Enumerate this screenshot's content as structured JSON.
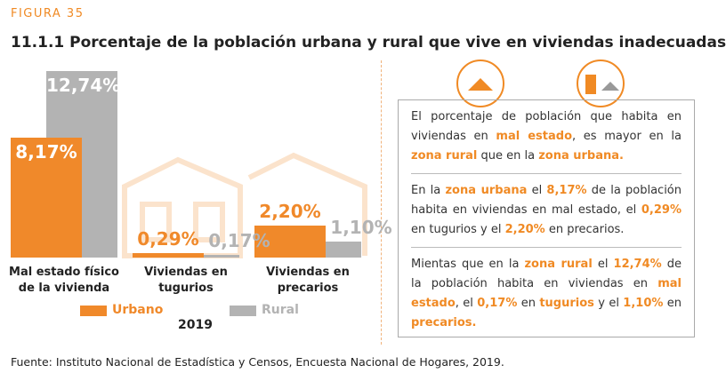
{
  "header": {
    "figure": "FIGURA 35",
    "title": "11.1.1 Porcentaje de la población urbana y rural  que vive en  viviendas inadecuadas"
  },
  "chart_data": {
    "type": "bar",
    "categories": [
      "Mal estado físico\nde la vivienda",
      "Viviendas en\ntugurios",
      "Viviendas en\nprecarios"
    ],
    "x_label": "2019",
    "series": [
      {
        "name": "Urbano",
        "color": "#f0892a",
        "values": [
          8.17,
          0.29,
          2.2
        ],
        "value_labels": [
          "8,17%",
          "0,29%",
          "2,20%"
        ]
      },
      {
        "name": "Rural",
        "color": "#b3b3b3",
        "values": [
          12.74,
          0.17,
          1.1
        ],
        "value_labels": [
          "12,74%",
          "0,17%",
          "1,10%"
        ]
      }
    ]
  },
  "panel": {
    "paragraphs": [
      [
        {
          "text": "El porcentaje de población que habita en viviendas en ",
          "em": false
        },
        {
          "text": "mal estado",
          "em": true
        },
        {
          "text": ", es mayor en la ",
          "em": false
        },
        {
          "text": "zona rural",
          "em": true
        },
        {
          "text": " que en la ",
          "em": false
        },
        {
          "text": "zona urbana.",
          "em": true
        }
      ],
      [
        {
          "text": "En la ",
          "em": false
        },
        {
          "text": "zona urbana",
          "em": true
        },
        {
          "text": " el ",
          "em": false
        },
        {
          "text": "8,17%",
          "em": true
        },
        {
          "text": " de la población habita en viviendas en mal estado, el ",
          "em": false
        },
        {
          "text": "0,29%",
          "em": true
        },
        {
          "text": " en tugurios y el ",
          "em": false
        },
        {
          "text": "2,20%",
          "em": true
        },
        {
          "text": " en precarios.",
          "em": false
        }
      ],
      [
        {
          "text": "Mientas que en la ",
          "em": false
        },
        {
          "text": "zona rural",
          "em": true
        },
        {
          "text": " el ",
          "em": false
        },
        {
          "text": "12,74%",
          "em": true
        },
        {
          "text": " de la población habita en viviendas en ",
          "em": false
        },
        {
          "text": "mal estado",
          "em": true
        },
        {
          "text": ", el ",
          "em": false
        },
        {
          "text": "0,17%",
          "em": true
        },
        {
          "text": " en ",
          "em": false
        },
        {
          "text": "tugurios",
          "em": true
        },
        {
          "text": " y el ",
          "em": false
        },
        {
          "text": "1,10%",
          "em": true
        },
        {
          "text": " en ",
          "em": false
        },
        {
          "text": "precarios.",
          "em": true
        }
      ]
    ]
  },
  "source": "Fuente: Instituto Nacional de Estadística y Censos, Encuesta Nacional de Hogares, 2019."
}
